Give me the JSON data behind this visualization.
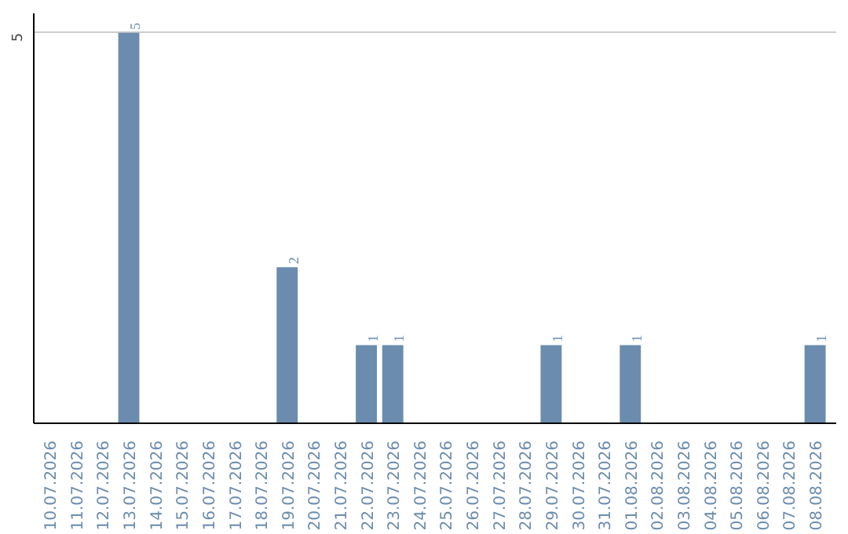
{
  "chart_data": {
    "type": "bar",
    "categories": [
      "10.07.2026",
      "11.07.2026",
      "12.07.2026",
      "13.07.2026",
      "14.07.2026",
      "15.07.2026",
      "16.07.2026",
      "17.07.2026",
      "18.07.2026",
      "19.07.2026",
      "20.07.2026",
      "21.07.2026",
      "22.07.2026",
      "23.07.2026",
      "24.07.2026",
      "25.07.2026",
      "26.07.2026",
      "27.07.2026",
      "28.07.2026",
      "29.07.2026",
      "30.07.2026",
      "31.07.2026",
      "01.08.2026",
      "02.08.2026",
      "03.08.2026",
      "04.08.2026",
      "05.08.2026",
      "06.08.2026",
      "07.08.2026",
      "08.08.2026"
    ],
    "values": [
      null,
      null,
      null,
      5,
      null,
      null,
      null,
      null,
      null,
      2,
      null,
      null,
      1,
      1,
      null,
      null,
      null,
      null,
      null,
      1,
      null,
      null,
      1,
      null,
      null,
      null,
      null,
      null,
      null,
      1
    ],
    "color": "#6b8cae",
    "ylim": [
      0,
      5.25
    ],
    "yticks": [
      5
    ],
    "grid": "y",
    "data_labels": true
  }
}
